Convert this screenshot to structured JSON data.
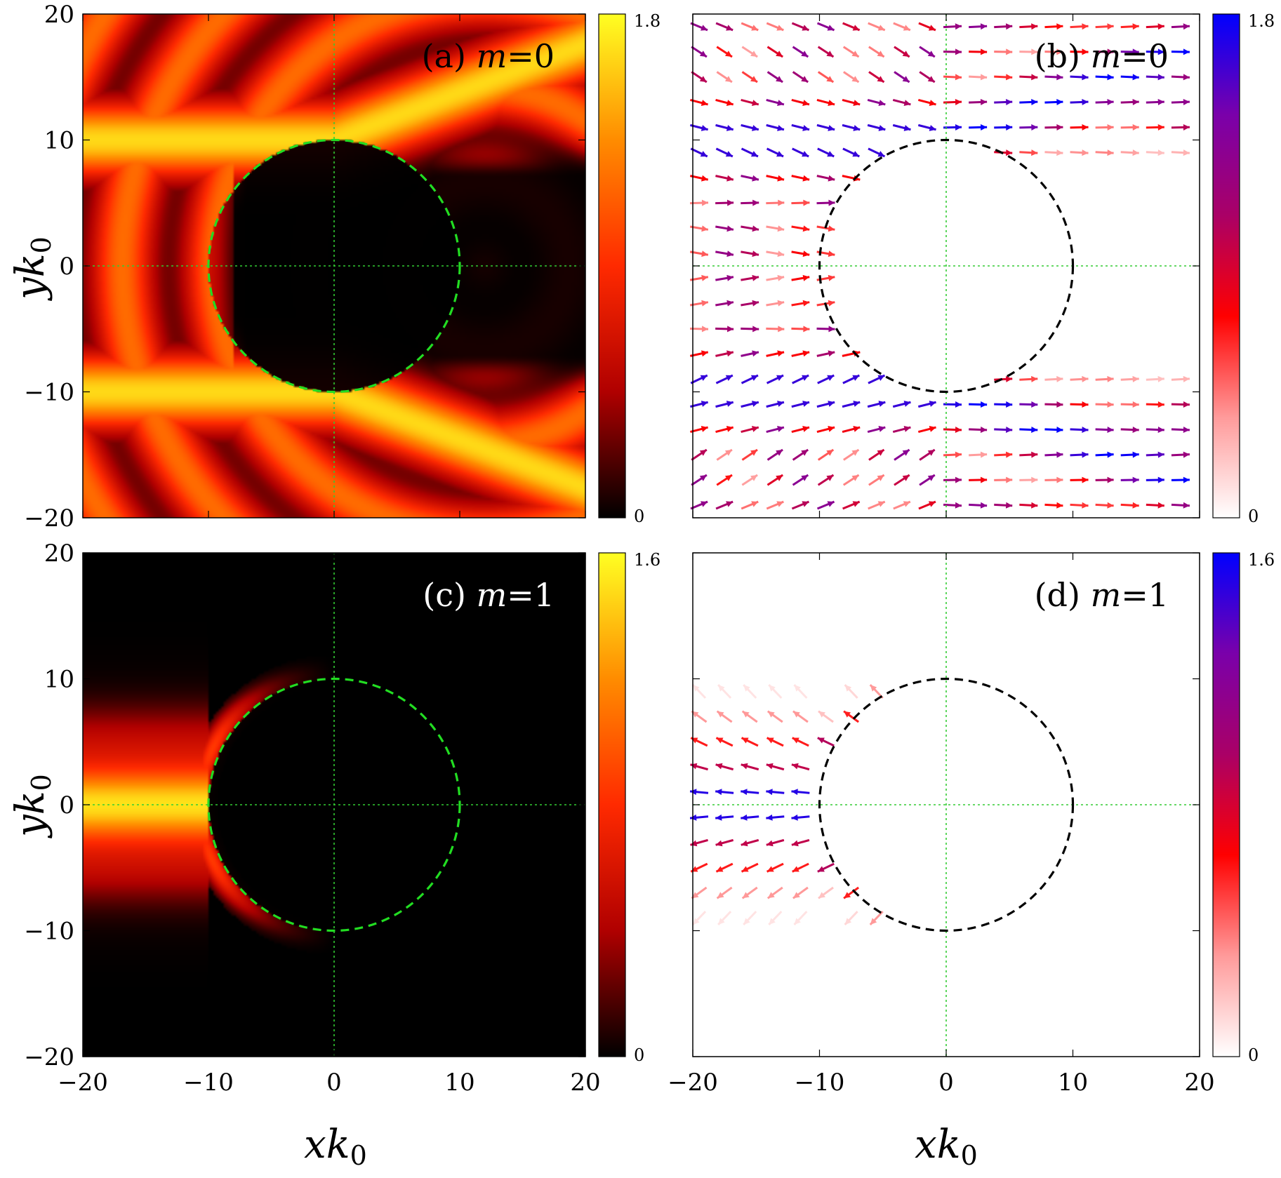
{
  "figure": {
    "xlabel_main": "x",
    "xlabel_sub": "k",
    "xlabel_subsub": "0",
    "ylabel_main": "y",
    "ylabel_sub": "k",
    "ylabel_subsub": "0"
  },
  "colors": {
    "circle_a_c": "#22dd22",
    "circle_b_d": "#000000",
    "guide_lines": "#33cc33",
    "heat_stops": [
      "#000000",
      "#b00000",
      "#ff2a00",
      "#ff8c00",
      "#ffff22"
    ],
    "vec_stops": [
      "#ffffff",
      "#ff9a9a",
      "#ff0000",
      "#aa0066",
      "#7a00aa",
      "#0000ff"
    ]
  },
  "chart_data": [
    {
      "id": "a",
      "type": "heatmap",
      "title_prefix": "(a)",
      "title_m": "m",
      "title_eq": "=0",
      "xlim": [
        -20,
        20
      ],
      "ylim": [
        -20,
        20
      ],
      "xticks": [],
      "yticks": [
        "20",
        "10",
        "0",
        "−10",
        "−20"
      ],
      "colorbar": {
        "min": "0",
        "max": "1.8"
      },
      "circle": {
        "cx": 0,
        "cy": 0,
        "r": 10
      },
      "mode": 0
    },
    {
      "id": "b",
      "type": "vector_field",
      "title_prefix": "(b)",
      "title_m": "m",
      "title_eq": "=0",
      "xlim": [
        -20,
        20
      ],
      "ylim": [
        -20,
        20
      ],
      "xticks": [],
      "yticks": [],
      "colorbar": {
        "min": "0",
        "max": "1.8"
      },
      "circle": {
        "cx": 0,
        "cy": 0,
        "r": 10
      },
      "mode": 0
    },
    {
      "id": "c",
      "type": "heatmap",
      "title_prefix": "(c)",
      "title_m": "m",
      "title_eq": "=1",
      "xlim": [
        -20,
        20
      ],
      "ylim": [
        -20,
        20
      ],
      "xticks": [
        "−20",
        "−10",
        "0",
        "10",
        "20"
      ],
      "yticks": [
        "20",
        "10",
        "0",
        "−10",
        "−20"
      ],
      "colorbar": {
        "min": "0",
        "max": "1.6"
      },
      "circle": {
        "cx": 0,
        "cy": 0,
        "r": 10
      },
      "mode": 1
    },
    {
      "id": "d",
      "type": "vector_field",
      "title_prefix": "(d)",
      "title_m": "m",
      "title_eq": "=1",
      "xlim": [
        -20,
        20
      ],
      "ylim": [
        -20,
        20
      ],
      "xticks": [
        "−20",
        "−10",
        "0",
        "10",
        "20"
      ],
      "yticks": [],
      "colorbar": {
        "min": "0",
        "max": "1.6"
      },
      "circle": {
        "cx": 0,
        "cy": 0,
        "r": 10
      },
      "mode": 1
    }
  ]
}
